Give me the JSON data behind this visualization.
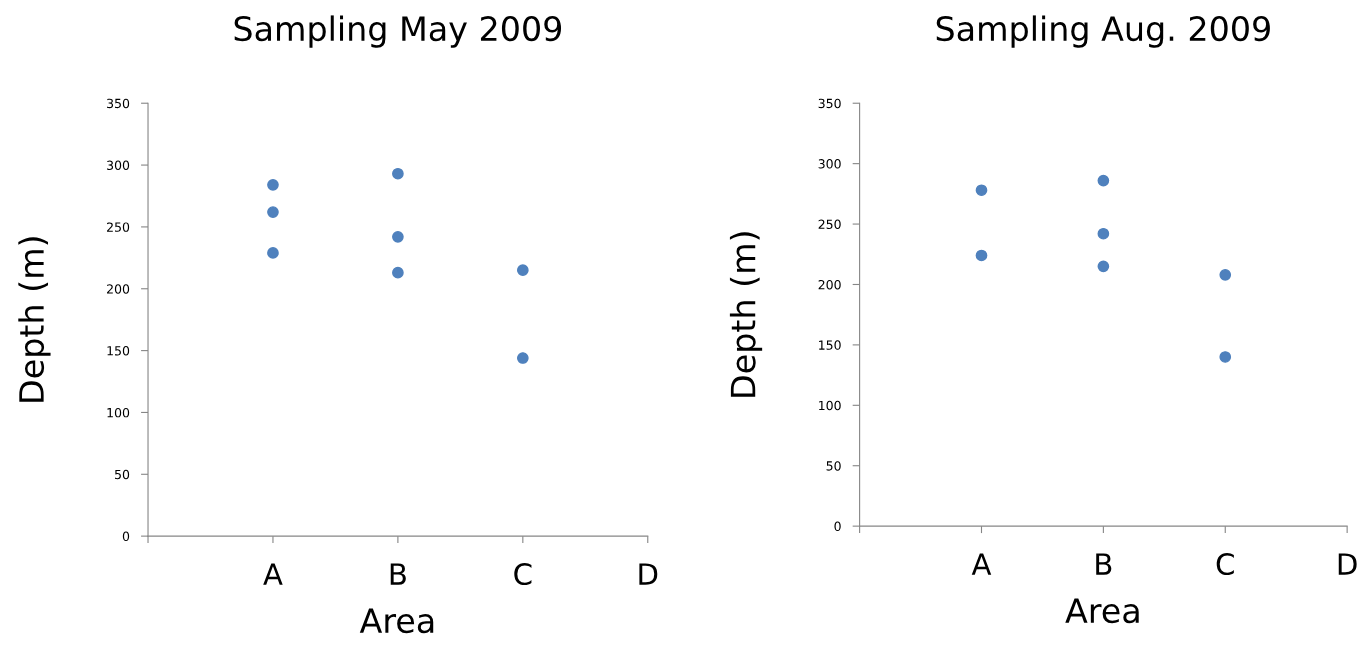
{
  "chart_data": [
    {
      "type": "scatter",
      "title": "Sampling May 2009",
      "xlabel": "Area",
      "ylabel": "Depth (m)",
      "categories": [
        null,
        "A",
        "B",
        "C",
        "D"
      ],
      "ylim": [
        0,
        350
      ],
      "yticks": [
        0,
        50,
        100,
        150,
        200,
        250,
        300,
        350
      ],
      "marker": "circle",
      "series": [
        {
          "color": "#4f81bd",
          "x": [
            "A",
            "A",
            "A",
            "B",
            "B",
            "B",
            "C",
            "C"
          ],
          "values": [
            284,
            262,
            229,
            293,
            242,
            213,
            215,
            144
          ]
        }
      ]
    },
    {
      "type": "scatter",
      "title": "Sampling Aug. 2009",
      "xlabel": "Area",
      "ylabel": "Depth (m)",
      "categories": [
        null,
        "A",
        "B",
        "C",
        "D"
      ],
      "ylim": [
        0,
        350
      ],
      "yticks": [
        0,
        50,
        100,
        150,
        200,
        250,
        300,
        350
      ],
      "marker": "circle",
      "series": [
        {
          "color": "#4f81bd",
          "x": [
            "A",
            "A",
            "B",
            "B",
            "B",
            "C",
            "C"
          ],
          "values": [
            278,
            224,
            286,
            242,
            215,
            208,
            140
          ]
        }
      ]
    }
  ]
}
